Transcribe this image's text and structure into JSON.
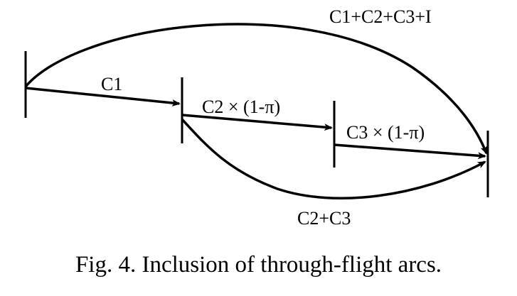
{
  "diagram": {
    "title": "Inclusion of through-flight arcs",
    "labels": {
      "top_arc": "C1+C2+C3+I",
      "arc_c1": "C1",
      "arc_c2": "C2 × (1-π)",
      "arc_c3": "C3 × (1-π)",
      "bottom_arc": "C2+C3"
    },
    "nodes": [
      "node-1",
      "node-2",
      "node-3",
      "node-4"
    ],
    "colors": {
      "stroke": "#000000",
      "background": "#ffffff"
    }
  },
  "caption": {
    "text": "Fig.  4. Inclusion of through-flight arcs."
  }
}
